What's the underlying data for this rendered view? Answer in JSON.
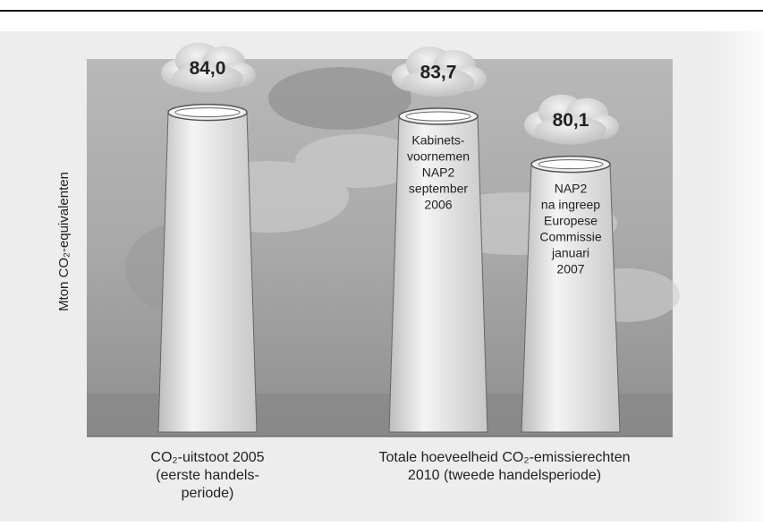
{
  "chart_data": {
    "type": "bar",
    "y_label": "Mton CO₂-equivalenten",
    "values": [
      84.0,
      83.7,
      80.1
    ],
    "value_labels": [
      "84,0",
      "83,7",
      "80,1"
    ],
    "ylim": [
      60,
      88
    ],
    "bar_texts": [
      [],
      [
        "Kabinets-",
        "voornemen",
        "NAP2",
        "september",
        "2006"
      ],
      [
        "NAP2",
        "na ingreep",
        "Europese",
        "Commissie",
        "januari",
        "2007"
      ]
    ],
    "x_labels": [
      [
        "CO₂-uitstoot 2005",
        "(eerste handels-",
        "periode)"
      ],
      [
        "Totale hoeveelheid CO₂-emissierechten",
        "2010 (tweede handelsperiode)"
      ]
    ],
    "color": "#e6e6e6"
  }
}
